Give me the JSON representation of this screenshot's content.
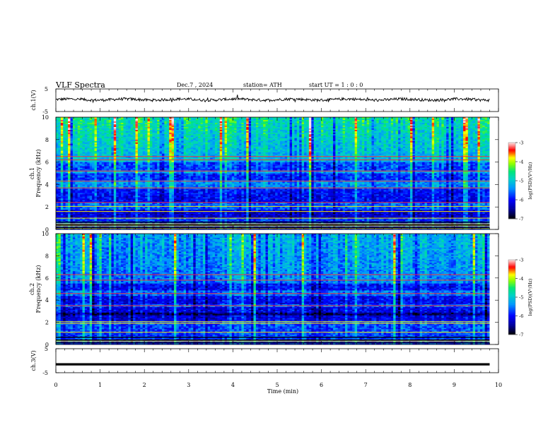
{
  "header": {
    "title": "VLF  Spectra",
    "date": "Dec.7  , 2024",
    "station": "station= ATH",
    "start_ut": "start  UT  =    1  : 0   : 0"
  },
  "colorbar": {
    "label": "log(PSD)(V²/Hz)",
    "ticks": [
      "-3",
      "-4",
      "-5",
      "-6",
      "-7"
    ],
    "colors": [
      "#fff0f0",
      "#ff9c9c",
      "#ff0000",
      "#ffff00",
      "#00ff00",
      "#00c8ff",
      "#0000ff",
      "#000000"
    ]
  },
  "chart_data": [
    {
      "type": "line",
      "name": "ch1-waveform",
      "ylabel": "ch.1(V)",
      "ylim": [
        -5,
        5
      ],
      "yticks": [
        "5",
        "-5"
      ],
      "x_range": [
        0,
        9.8
      ],
      "level": 0.3,
      "noise": 0.6
    },
    {
      "type": "heatmap",
      "name": "ch1-spectrogram",
      "ylabel": "ch.1\nFrequency  (kHz)",
      "ylim": [
        0,
        10
      ],
      "yticks": [
        "0",
        "2",
        "4",
        "6",
        "8",
        "10"
      ],
      "x_range": [
        0,
        9.8
      ],
      "z_range": [
        -7,
        -3
      ],
      "bands_khz": [
        0.1,
        0.3,
        0.5,
        1.0,
        1.6,
        2.05,
        2.4,
        3.7,
        4.3,
        5.2,
        6.2,
        6.5
      ],
      "dark_bands_khz": [
        1.4,
        2.7,
        3.3,
        4.7,
        5.6
      ]
    },
    {
      "type": "heatmap",
      "name": "ch2-spectrogram",
      "ylabel": "ch.2\nFrequency  (kHz)",
      "ylim": [
        0,
        10
      ],
      "yticks": [
        "0",
        "2",
        "4",
        "6",
        "8",
        "10"
      ],
      "x_range": [
        0,
        9.8
      ],
      "z_range": [
        -7,
        -3
      ],
      "bands_khz": [
        0.3,
        1.1,
        1.9,
        2.05,
        3.5,
        4.6,
        5.8,
        6.3
      ],
      "dark_bands_khz": [
        2.5,
        3.0,
        4.0,
        5.2
      ]
    },
    {
      "type": "line",
      "name": "ch3-waveform",
      "ylabel": "ch.3(V)",
      "ylim": [
        -5,
        5
      ],
      "yticks": [
        "5",
        "-5"
      ],
      "x_range": [
        0,
        9.8
      ],
      "level": -1.5,
      "noise": 0.0
    }
  ],
  "xaxis": {
    "label": "Time  (min)",
    "range": [
      0,
      10
    ],
    "ticks": [
      "0",
      "1",
      "2",
      "3",
      "4",
      "5",
      "6",
      "7",
      "8",
      "9",
      "10"
    ]
  }
}
